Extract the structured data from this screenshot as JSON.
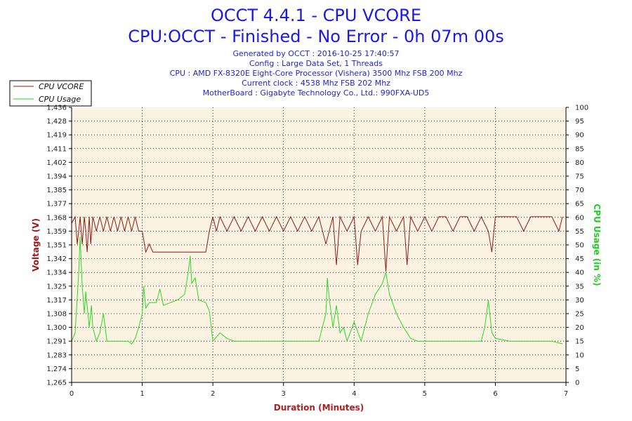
{
  "titles": {
    "line1": "OCCT 4.4.1 - CPU VCORE",
    "line2": "CPU:OCCT - Finished - No Error - 0h 07m 00s"
  },
  "info": {
    "generated": "Generated by OCCT : 2016-10-25 17:40:57",
    "config": "Config : Large Data Set, 1 Threads",
    "cpu": "CPU : AMD FX-8320E Eight-Core Processor (Vishera) 3500 Mhz FSB 200 Mhz",
    "clock": "Current clock : 4538 Mhz FSB 202 Mhz",
    "motherboard": "MotherBoard : Gigabyte Technology Co., Ltd.: 990FXA-UD5"
  },
  "colors": {
    "vcore": "#8b1a1a",
    "usage": "#22dd22",
    "plot_bg": "#fdf3e2",
    "grid": "#333333"
  },
  "chart_data": {
    "type": "line",
    "xlabel": "Duration (Minutes)",
    "ylabel_left": "Voltage (V)",
    "ylabel_right": "CPU Usage (in %)",
    "xlim": [
      0,
      7
    ],
    "ylim_left": [
      1.265,
      1.436
    ],
    "ylim_right": [
      0,
      100
    ],
    "x_ticks": [
      "0",
      "1",
      "2",
      "3",
      "4",
      "5",
      "6",
      "7"
    ],
    "y_left_ticks": [
      "1,265",
      "1,274",
      "1,283",
      "1,291",
      "1,300",
      "1,308",
      "1,317",
      "1,325",
      "1,334",
      "1,342",
      "1,351",
      "1,359",
      "1,368",
      "1,377",
      "1,385",
      "1,394",
      "1,402",
      "1,411",
      "1,419",
      "1,428",
      "1,436"
    ],
    "y_left_tick_values": [
      1.265,
      1.274,
      1.283,
      1.291,
      1.3,
      1.308,
      1.317,
      1.325,
      1.334,
      1.342,
      1.351,
      1.359,
      1.368,
      1.377,
      1.385,
      1.394,
      1.402,
      1.411,
      1.419,
      1.428,
      1.436
    ],
    "y_right_ticks": [
      "0",
      "5",
      "10",
      "15",
      "20",
      "25",
      "30",
      "35",
      "40",
      "45",
      "50",
      "55",
      "60",
      "65",
      "70",
      "75",
      "80",
      "85",
      "90",
      "95",
      "100"
    ],
    "grid": true,
    "legend_position": "top-left",
    "series": [
      {
        "name": "CPU VCORE",
        "axis": "left",
        "x": [
          0,
          0.05,
          0.08,
          0.1,
          0.12,
          0.15,
          0.18,
          0.2,
          0.22,
          0.25,
          0.27,
          0.3,
          0.35,
          0.4,
          0.45,
          0.5,
          0.55,
          0.6,
          0.65,
          0.7,
          0.75,
          0.8,
          0.85,
          0.9,
          0.95,
          1.0,
          1.05,
          1.1,
          1.15,
          1.2,
          1.3,
          1.4,
          1.5,
          1.6,
          1.7,
          1.8,
          1.9,
          1.95,
          2.0,
          2.05,
          2.1,
          2.2,
          2.3,
          2.4,
          2.5,
          2.6,
          2.7,
          2.8,
          2.9,
          3.0,
          3.1,
          3.2,
          3.3,
          3.4,
          3.5,
          3.6,
          3.7,
          3.75,
          3.8,
          3.9,
          4.0,
          4.05,
          4.1,
          4.2,
          4.3,
          4.4,
          4.45,
          4.5,
          4.6,
          4.7,
          4.75,
          4.8,
          4.9,
          5.0,
          5.1,
          5.2,
          5.3,
          5.4,
          5.5,
          5.6,
          5.7,
          5.8,
          5.9,
          5.95,
          6.0,
          6.1,
          6.2,
          6.3,
          6.4,
          6.5,
          6.6,
          6.7,
          6.8,
          6.9,
          6.95
        ],
        "values": [
          1.364,
          1.368,
          1.351,
          1.359,
          1.368,
          1.351,
          1.368,
          1.359,
          1.346,
          1.368,
          1.351,
          1.368,
          1.359,
          1.368,
          1.359,
          1.368,
          1.359,
          1.368,
          1.359,
          1.368,
          1.359,
          1.368,
          1.359,
          1.368,
          1.359,
          1.359,
          1.346,
          1.351,
          1.346,
          1.346,
          1.346,
          1.346,
          1.346,
          1.346,
          1.346,
          1.346,
          1.346,
          1.359,
          1.368,
          1.359,
          1.368,
          1.359,
          1.368,
          1.359,
          1.368,
          1.359,
          1.368,
          1.359,
          1.368,
          1.359,
          1.368,
          1.359,
          1.368,
          1.359,
          1.368,
          1.351,
          1.368,
          1.338,
          1.368,
          1.359,
          1.368,
          1.338,
          1.359,
          1.368,
          1.359,
          1.368,
          1.334,
          1.368,
          1.359,
          1.368,
          1.338,
          1.368,
          1.359,
          1.368,
          1.359,
          1.368,
          1.368,
          1.359,
          1.368,
          1.368,
          1.359,
          1.368,
          1.359,
          1.346,
          1.368,
          1.368,
          1.368,
          1.368,
          1.359,
          1.368,
          1.368,
          1.368,
          1.368,
          1.359,
          1.368
        ]
      },
      {
        "name": "CPU Usage",
        "axis": "right",
        "x": [
          0,
          0.05,
          0.1,
          0.12,
          0.15,
          0.18,
          0.2,
          0.25,
          0.28,
          0.3,
          0.35,
          0.4,
          0.45,
          0.5,
          0.55,
          0.6,
          0.7,
          0.8,
          0.85,
          0.9,
          0.95,
          1.0,
          1.02,
          1.05,
          1.1,
          1.2,
          1.25,
          1.3,
          1.4,
          1.5,
          1.6,
          1.65,
          1.68,
          1.7,
          1.75,
          1.8,
          1.9,
          1.95,
          2.0,
          2.1,
          2.2,
          2.3,
          2.5,
          2.7,
          2.9,
          3.1,
          3.3,
          3.5,
          3.6,
          3.62,
          3.65,
          3.7,
          3.75,
          3.8,
          3.85,
          3.9,
          4.0,
          4.1,
          4.2,
          4.3,
          4.4,
          4.45,
          4.5,
          4.6,
          4.7,
          4.8,
          4.9,
          5.0,
          5.2,
          5.4,
          5.6,
          5.8,
          5.85,
          5.9,
          5.95,
          6.0,
          6.2,
          6.4,
          6.6,
          6.8,
          6.95
        ],
        "values": [
          15,
          18,
          40,
          53,
          35,
          25,
          33,
          20,
          28,
          20,
          15,
          18,
          25,
          15,
          15,
          15,
          15,
          15,
          14,
          16,
          20,
          25,
          35,
          27,
          29,
          29,
          34,
          28,
          29,
          30,
          32,
          40,
          46,
          36,
          38,
          30,
          29,
          26,
          15,
          18,
          16,
          15,
          15,
          15,
          15,
          15,
          15,
          15,
          25,
          38,
          30,
          20,
          28,
          18,
          20,
          15,
          22,
          15,
          25,
          32,
          36,
          40,
          32,
          25,
          20,
          16,
          15,
          15,
          15,
          15,
          15,
          15,
          20,
          30,
          18,
          16,
          15,
          15,
          15,
          15,
          14
        ]
      }
    ]
  }
}
